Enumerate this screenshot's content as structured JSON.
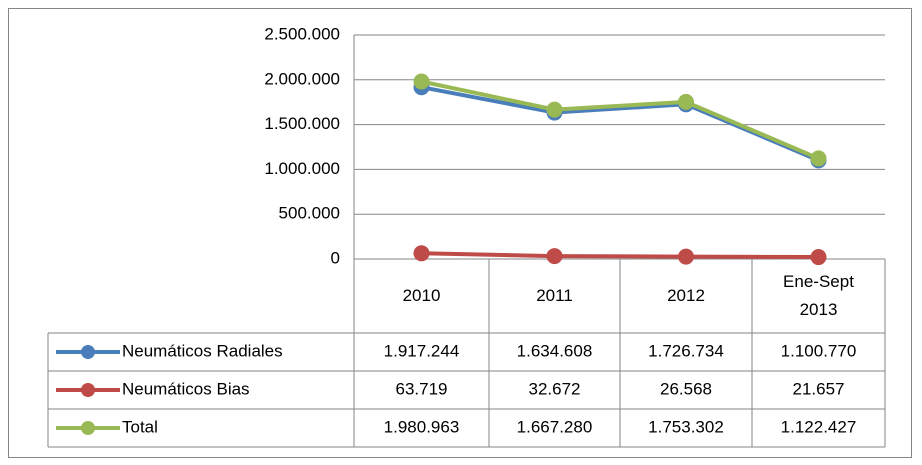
{
  "chart_data": {
    "type": "line",
    "categories": [
      "2010",
      "2011",
      "2012",
      "Ene-Sept 2013"
    ],
    "series": [
      {
        "name": "Neumáticos Radiales",
        "color": "#4a7ebb",
        "values": [
          1917244,
          1634608,
          1726734,
          1100770
        ],
        "value_labels": [
          "1.917.244",
          "1.634.608",
          "1.726.734",
          "1.100.770"
        ]
      },
      {
        "name": "Neumáticos Bias",
        "color": "#be4b48",
        "values": [
          63719,
          32672,
          26568,
          21657
        ],
        "value_labels": [
          "63.719",
          "32.672",
          "26.568",
          "21.657"
        ]
      },
      {
        "name": "Total",
        "color": "#98b954",
        "values": [
          1980963,
          1667280,
          1753302,
          1122427
        ],
        "value_labels": [
          "1.980.963",
          "1.667.280",
          "1.753.302",
          "1.122.427"
        ]
      }
    ],
    "ylim": [
      0,
      2500000
    ],
    "yticks": [
      0,
      {
        "value": 500000,
        "label": "500.000"
      },
      {
        "value": 1000000,
        "label": "1.000.000"
      },
      {
        "value": 1500000,
        "label": "1.500.000"
      },
      {
        "value": 2000000,
        "label": "2.000.000"
      },
      {
        "value": 2500000,
        "label": "2.500.000"
      }
    ],
    "grid": true,
    "data_table": true
  }
}
